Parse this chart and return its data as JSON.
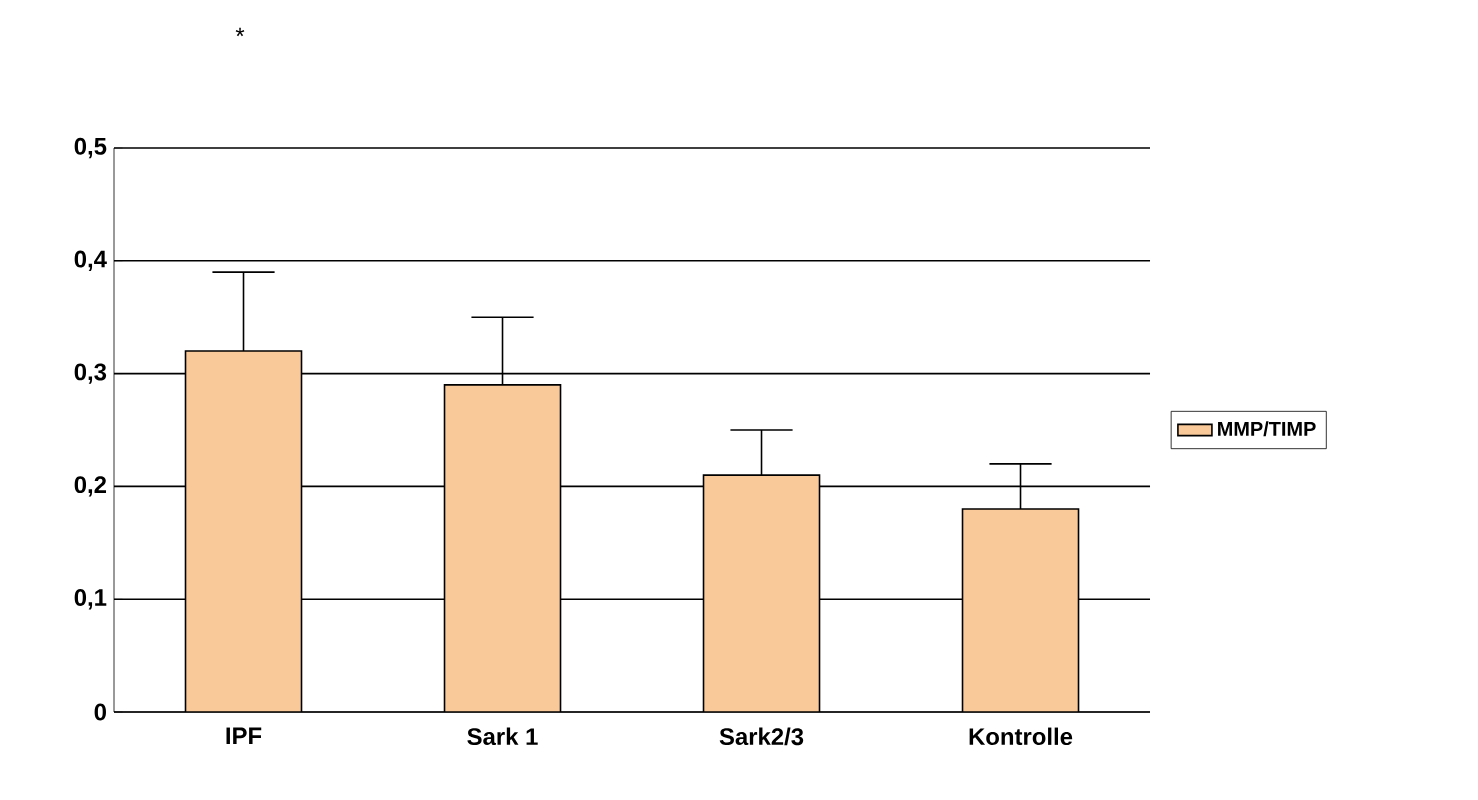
{
  "chart_data": {
    "type": "bar",
    "categories": [
      "IPF",
      "Sark 1",
      "Sark2/3",
      "Kontrolle"
    ],
    "series": [
      {
        "name": "MMP/TIMP",
        "color": "#f9c99a",
        "values": [
          0.32,
          0.29,
          0.21,
          0.18
        ],
        "errors": [
          [
            0.32,
            0.39
          ],
          [
            0.29,
            0.35
          ],
          [
            0.21,
            0.25
          ],
          [
            0.18,
            0.22
          ]
        ]
      }
    ],
    "ylim": [
      0,
      0.5
    ],
    "yticks": [
      {
        "value": 0,
        "label": "0"
      },
      {
        "value": 0.1,
        "label": "0,1"
      },
      {
        "value": 0.2,
        "label": "0,2"
      },
      {
        "value": 0.3,
        "label": "0,3"
      },
      {
        "value": 0.4,
        "label": "0,4"
      },
      {
        "value": 0.5,
        "label": "0,5"
      }
    ],
    "grid": "y",
    "legend": "right",
    "annotations": [
      "*"
    ]
  }
}
